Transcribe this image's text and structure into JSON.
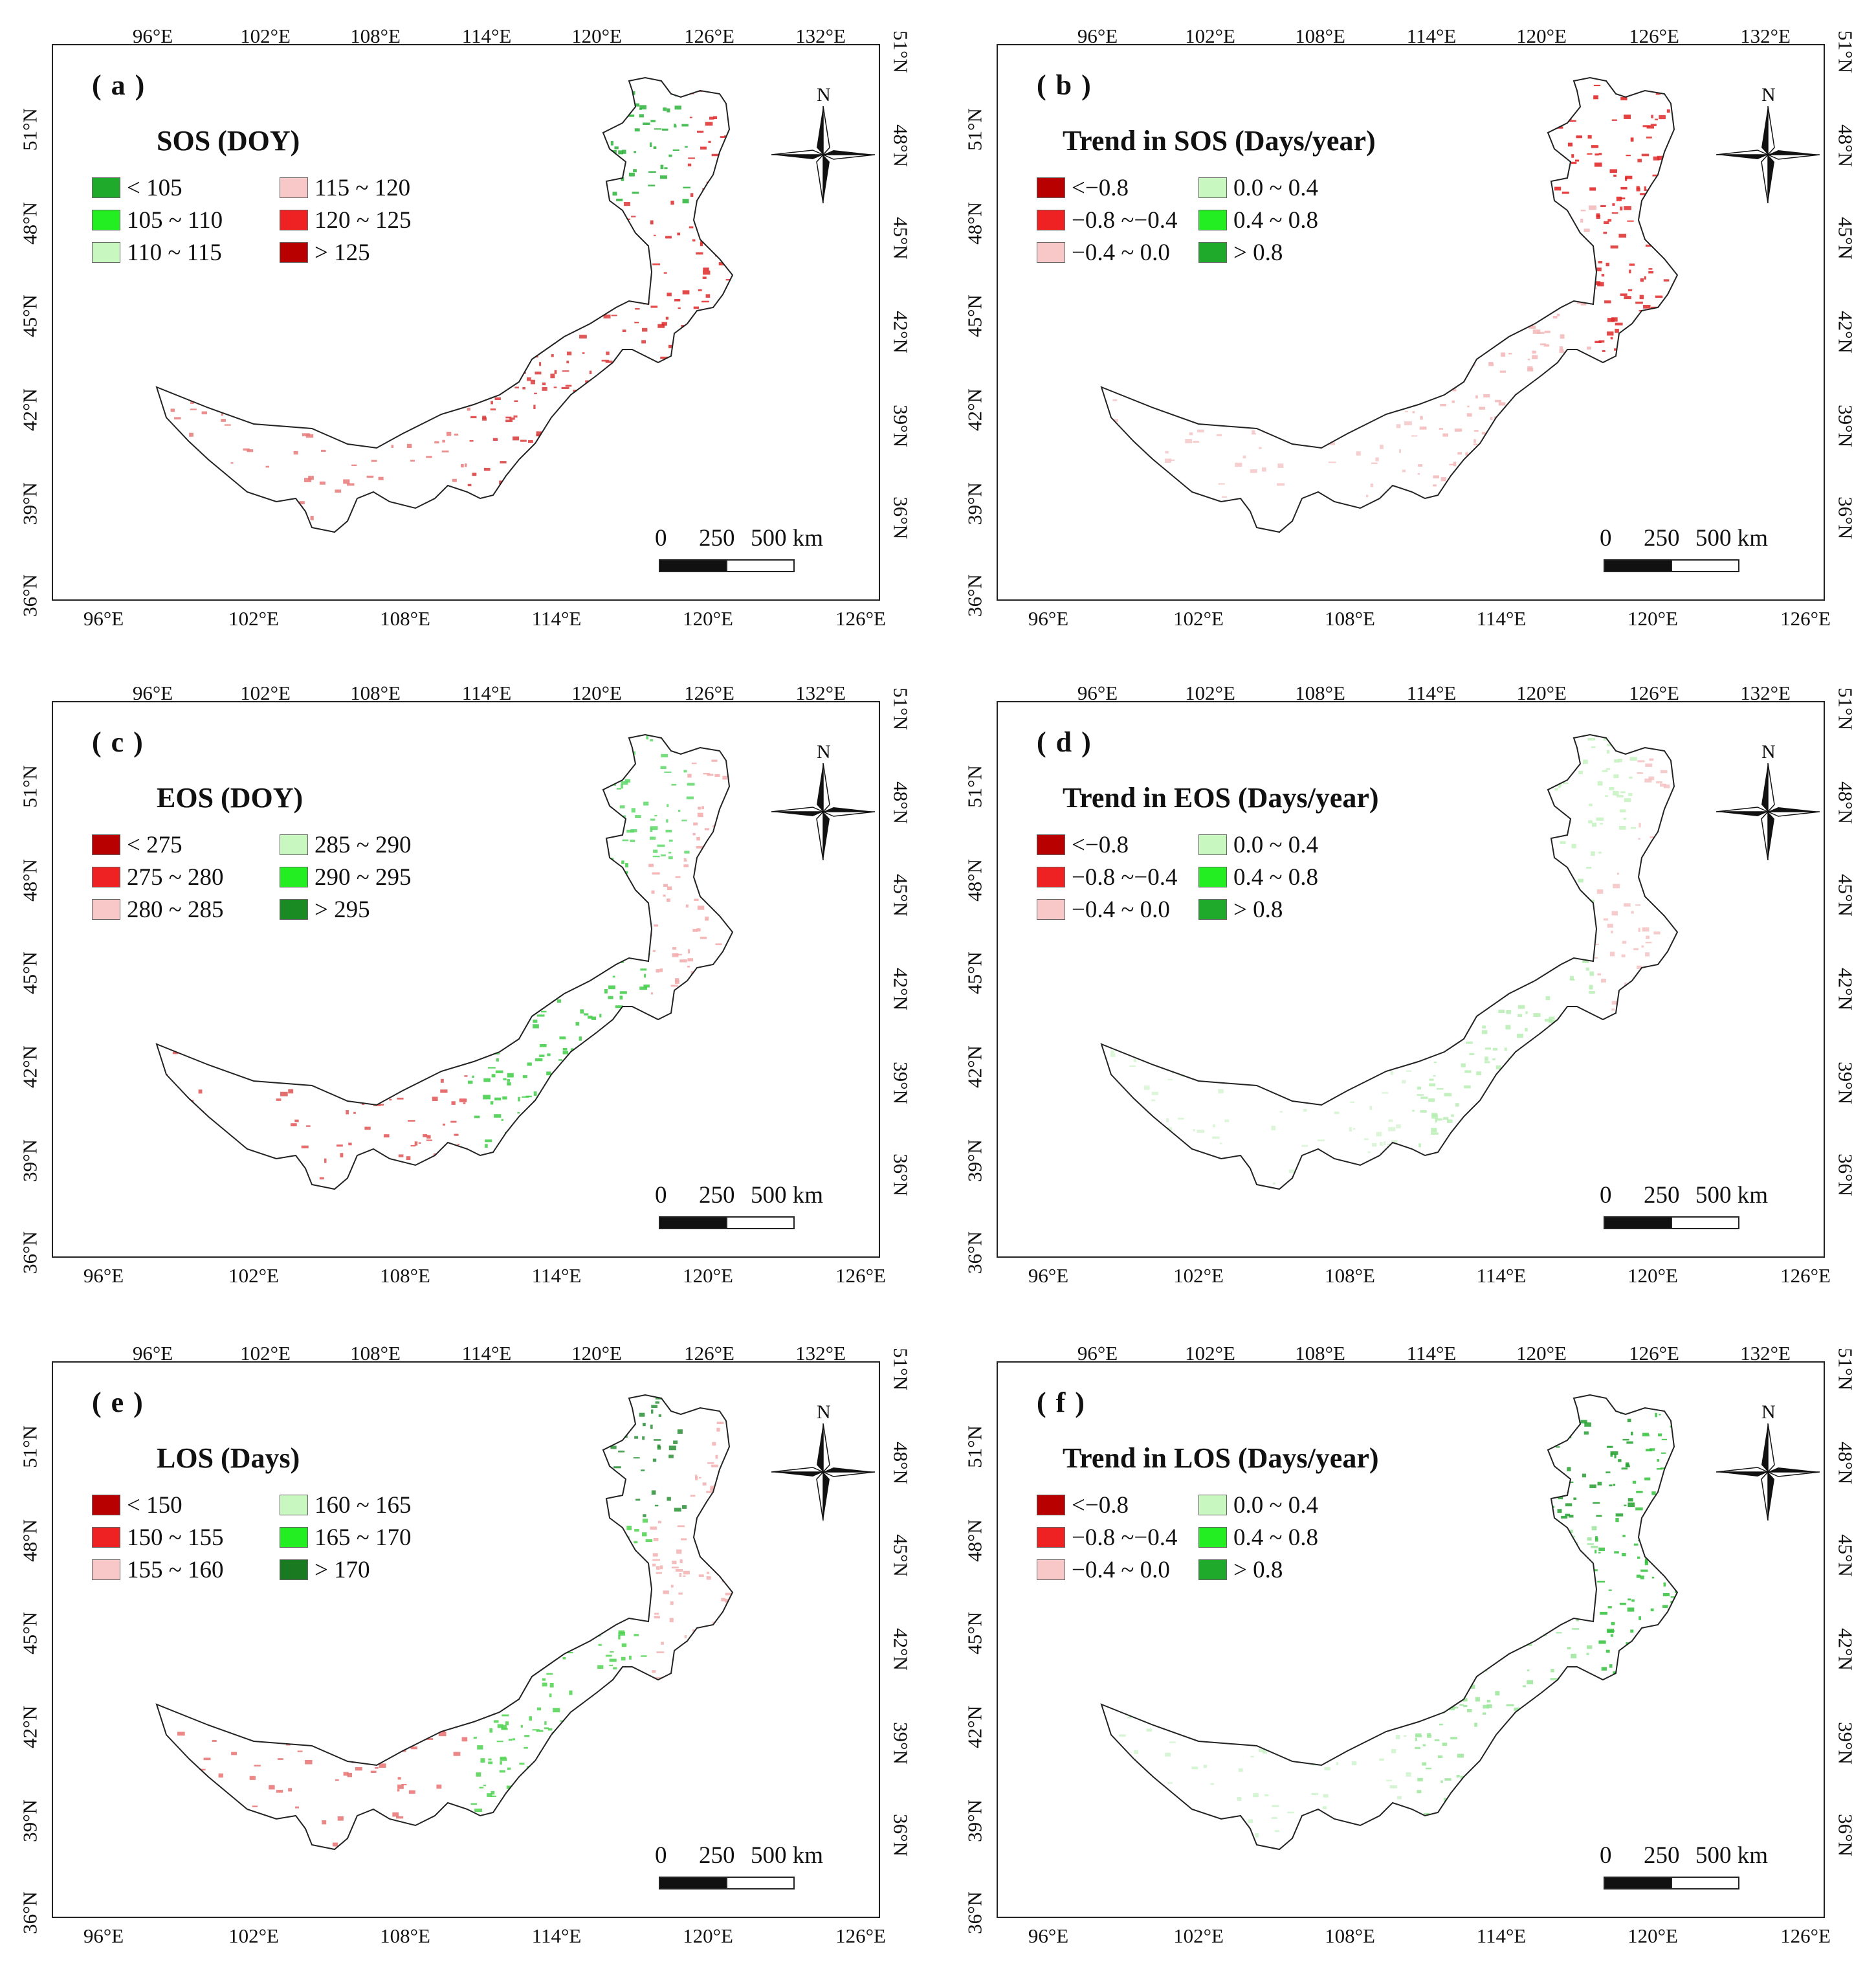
{
  "axes": {
    "top_ticks": [
      "96°E",
      "102°E",
      "108°E",
      "114°E",
      "120°E",
      "126°E",
      "132°E"
    ],
    "bottom_ticks": [
      "96°E",
      "102°E",
      "108°E",
      "114°E",
      "120°E",
      "126°E"
    ],
    "left_ticks": [
      "51°N",
      "48°N",
      "45°N",
      "42°N",
      "39°N",
      "36°N"
    ],
    "right_ticks": [
      "51°N",
      "48°N",
      "45°N",
      "42°N",
      "39°N",
      "36°N"
    ]
  },
  "compass": {
    "label": "N"
  },
  "scale": {
    "zero": "0",
    "mid": "250",
    "end": "500 km"
  },
  "panels": [
    {
      "label": "( a )",
      "title": "SOS (DOY)",
      "legend": [
        {
          "text": "< 105",
          "color": "#1faa2c"
        },
        {
          "text": "105 ~ 110",
          "color": "#22ee22"
        },
        {
          "text": "110 ~ 115",
          "color": "#c8f7c0"
        },
        {
          "text": "115 ~ 120",
          "color": "#f8c8c8"
        },
        {
          "text": "120 ~ 125",
          "color": "#ee2222"
        },
        {
          "text": "> 125",
          "color": "#b80000"
        }
      ],
      "map_colors": {
        "north": "#2bb33a",
        "east": "#dd2a2a",
        "center": "#d93a3a",
        "west": "#e87a7a"
      }
    },
    {
      "label": "( b )",
      "title": "Trend in SOS (Days/year)",
      "legend": [
        {
          "text": "<−0.8",
          "color": "#b80000"
        },
        {
          "text": "−0.8 ~−0.4",
          "color": "#ee2222"
        },
        {
          "text": "−0.4 ~ 0.0",
          "color": "#f8c8c8"
        },
        {
          "text": "0.0 ~ 0.4",
          "color": "#c8f7c0"
        },
        {
          "text": "0.4 ~ 0.8",
          "color": "#22ee22"
        },
        {
          "text": "> 0.8",
          "color": "#1faa2c"
        }
      ],
      "map_colors": {
        "north": "#e01f1f",
        "east": "#e02a2a",
        "center": "#f2b7b7",
        "west": "#f5c8c8"
      }
    },
    {
      "label": "( c )",
      "title": "EOS (DOY)",
      "legend": [
        {
          "text": "< 275",
          "color": "#b80000"
        },
        {
          "text": "275 ~ 280",
          "color": "#ee2222"
        },
        {
          "text": "280 ~ 285",
          "color": "#f8c8c8"
        },
        {
          "text": "285 ~ 290",
          "color": "#c8f7c0"
        },
        {
          "text": "290 ~ 295",
          "color": "#22ee22"
        },
        {
          "text": "> 295",
          "color": "#1a8a22"
        }
      ],
      "map_colors": {
        "north": "#5fd86a",
        "east": "#f2a9a9",
        "center": "#3fcc45",
        "west": "#e25454"
      }
    },
    {
      "label": "( d )",
      "title": "Trend in EOS (Days/year)",
      "legend": [
        {
          "text": "<−0.8",
          "color": "#b80000"
        },
        {
          "text": "−0.8 ~−0.4",
          "color": "#ee2222"
        },
        {
          "text": "−0.4 ~ 0.0",
          "color": "#f8c8c8"
        },
        {
          "text": "0.0 ~ 0.4",
          "color": "#c8f7c0"
        },
        {
          "text": "0.4 ~ 0.8",
          "color": "#22ee22"
        },
        {
          "text": "> 0.8",
          "color": "#1faa2c"
        }
      ],
      "map_colors": {
        "north": "#c6f2c0",
        "east": "#f4c2c2",
        "center": "#b7edb3",
        "west": "#d7f5d3"
      }
    },
    {
      "label": "( e )",
      "title": "LOS (Days)",
      "legend": [
        {
          "text": "< 150",
          "color": "#b80000"
        },
        {
          "text": "150 ~ 155",
          "color": "#ee2222"
        },
        {
          "text": "155 ~ 160",
          "color": "#f8c8c8"
        },
        {
          "text": "160 ~ 165",
          "color": "#c8f7c0"
        },
        {
          "text": "165 ~ 170",
          "color": "#22ee22"
        },
        {
          "text": "> 170",
          "color": "#1a7a22"
        }
      ],
      "map_colors": {
        "north": "#2a8f35",
        "east": "#f2b0b0",
        "center": "#4fd450",
        "west": "#e87272"
      }
    },
    {
      "label": "( f )",
      "title": "Trend in LOS (Days/year)",
      "legend": [
        {
          "text": "<−0.8",
          "color": "#b80000"
        },
        {
          "text": "−0.8 ~−0.4",
          "color": "#ee2222"
        },
        {
          "text": "−0.4 ~ 0.0",
          "color": "#f8c8c8"
        },
        {
          "text": "0.0 ~ 0.4",
          "color": "#c8f7c0"
        },
        {
          "text": "0.4 ~ 0.8",
          "color": "#22ee22"
        },
        {
          "text": "> 0.8",
          "color": "#1faa2c"
        }
      ],
      "map_colors": {
        "north": "#23a02f",
        "east": "#35c23d",
        "center": "#9be59b",
        "west": "#cff3cc"
      }
    }
  ]
}
